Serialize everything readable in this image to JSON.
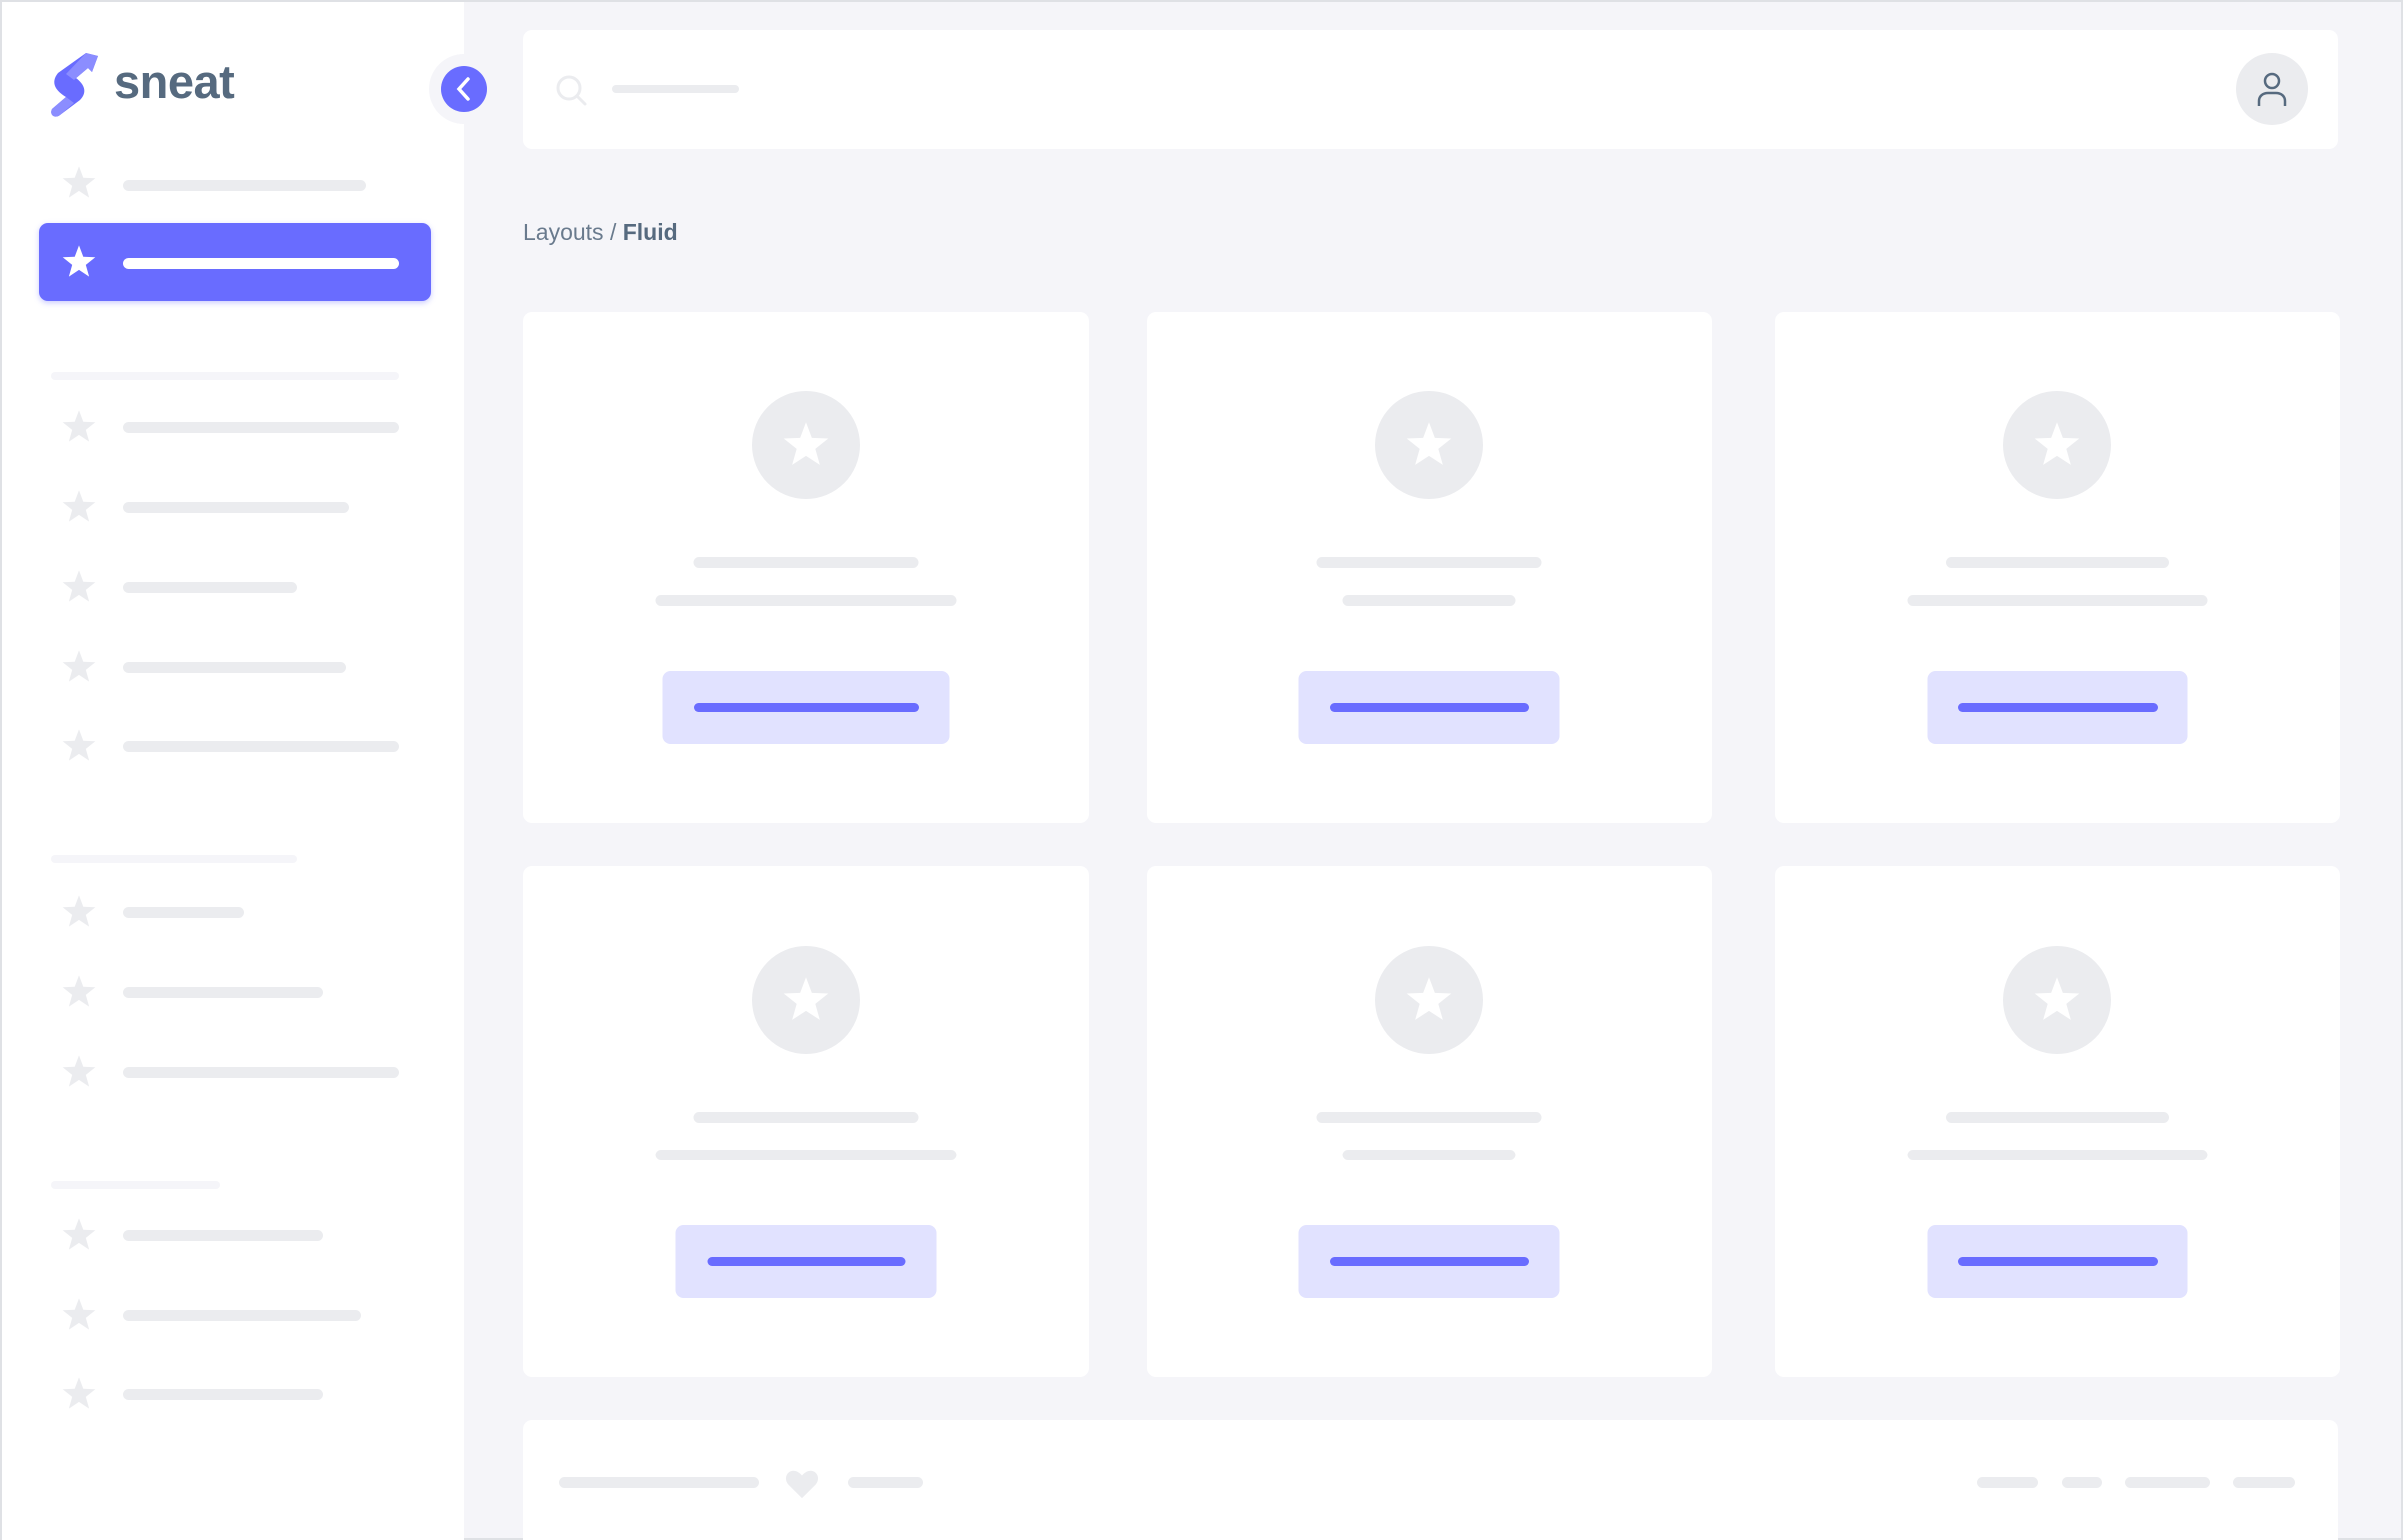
{
  "brand": {
    "name": "sneat",
    "logo_icon": "sneat-s-logo"
  },
  "sidebar": {
    "toggle_icon": "chevron-left-icon",
    "item_icon": "star-icon",
    "active_index": 1
  },
  "navbar": {
    "search_icon": "search-icon",
    "avatar_icon": "user-icon"
  },
  "breadcrumb": {
    "parent": "Layouts",
    "separator": " / ",
    "current": "Fluid"
  },
  "cards": {
    "icon": "star-icon",
    "count": 6
  },
  "footer": {
    "icon": "heart-icon"
  },
  "colors": {
    "primary": "#696cff",
    "primary_light": "#e1e2ff",
    "placeholder": "#ebecef",
    "background": "#f5f5f9",
    "heading": "#566a7f"
  }
}
